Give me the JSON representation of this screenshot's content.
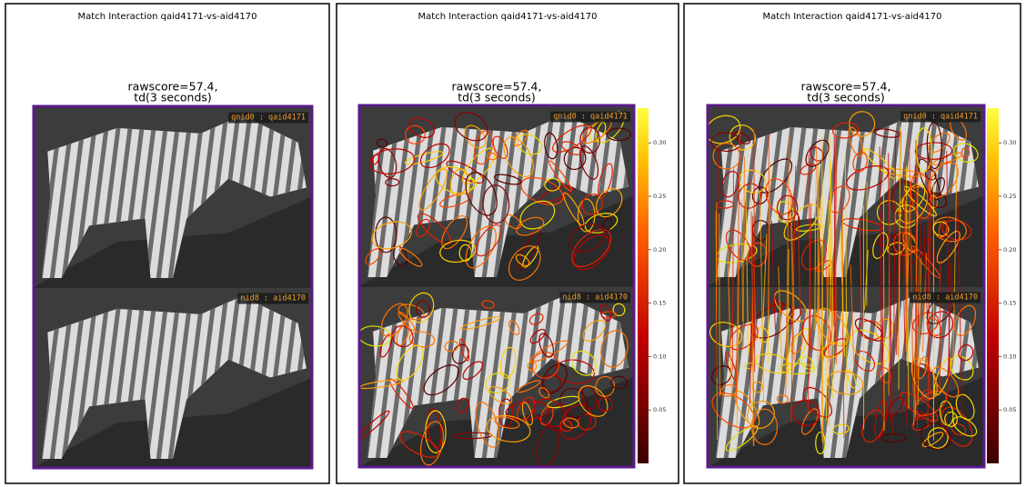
{
  "panels": [
    {
      "title": "Match Interaction qaid4171-vs-aid4170",
      "score_lines": [
        "rawscore=57.4,",
        "td(3 seconds)"
      ],
      "top_label": "qnid0 : qaid4171",
      "bottom_label": "nid8 : aid4170"
    },
    {
      "title": "Match Interaction qaid4171-vs-aid4170",
      "score_lines": [
        "rawscore=57.4,",
        "td(3 seconds)"
      ],
      "top_label": "qnid0 : qaid4171",
      "bottom_label": "nid8 : aid4170",
      "colorbar_ticks": [
        "0.30",
        "0.25",
        "0.20",
        "0.15",
        "0.10",
        "0.05"
      ]
    },
    {
      "title": "Match Interaction qaid4171-vs-aid4170",
      "score_lines": [
        "rawscore=57.4,",
        "td(3 seconds)"
      ],
      "top_label": "qnid0 : qaid4171",
      "bottom_label": "nid8 : aid4170",
      "colorbar_ticks": [
        "0.30",
        "0.25",
        "0.20",
        "0.15",
        "0.10",
        "0.05"
      ]
    }
  ]
}
